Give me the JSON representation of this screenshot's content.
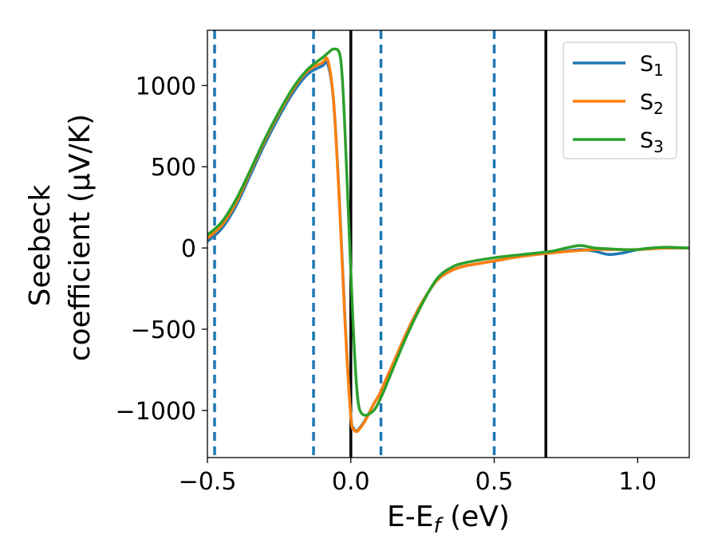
{
  "chart_data": {
    "type": "line",
    "xlabel": "E-E",
    "xlabel_sub": "f",
    "xlabel_unit": " (eV)",
    "ylabel_line1": "Seebeck",
    "ylabel_line2": "coefficient  (μV/K)",
    "xlim": [
      -0.5,
      1.18
    ],
    "ylim": [
      -1290,
      1340
    ],
    "x_ticks": [
      -0.5,
      0.0,
      0.5,
      1.0
    ],
    "x_tick_labels": [
      "−0.5",
      "0.0",
      "0.5",
      "1.0"
    ],
    "y_ticks": [
      1000,
      500,
      0,
      -500,
      -1000
    ],
    "y_tick_labels": [
      "1000",
      "500",
      "0",
      "−500",
      "−1000"
    ],
    "grid": false,
    "legend_position": "top-right",
    "vlines_dashed": [
      -0.475,
      -0.13,
      0.105,
      0.5
    ],
    "vlines_solid": [
      0.0,
      0.68
    ],
    "colors": {
      "S1": "#1f77b4",
      "S2": "#ff7f0e",
      "S3": "#2ca02c",
      "dashed": "#1f77b4",
      "solid": "#000000"
    },
    "series": [
      {
        "name": "S",
        "sub": "1",
        "color": "#1f77b4",
        "x": [
          -0.5,
          -0.45,
          -0.4,
          -0.35,
          -0.3,
          -0.25,
          -0.2,
          -0.15,
          -0.1,
          -0.08,
          -0.06,
          -0.04,
          -0.02,
          0.0,
          0.01,
          0.02,
          0.03,
          0.05,
          0.08,
          0.1,
          0.12,
          0.15,
          0.2,
          0.25,
          0.3,
          0.35,
          0.4,
          0.5,
          0.6,
          0.7,
          0.8,
          0.85,
          0.9,
          0.95,
          1.0,
          1.05,
          1.1,
          1.18
        ],
        "y": [
          40,
          120,
          260,
          450,
          640,
          810,
          960,
          1070,
          1120,
          1130,
          900,
          300,
          -450,
          -1030,
          -1110,
          -1125,
          -1110,
          -1060,
          -960,
          -900,
          -820,
          -700,
          -500,
          -330,
          -200,
          -140,
          -110,
          -80,
          -50,
          -30,
          -10,
          -20,
          -40,
          -30,
          -10,
          0,
          0,
          0
        ]
      },
      {
        "name": "S",
        "sub": "2",
        "color": "#ff7f0e",
        "x": [
          -0.5,
          -0.45,
          -0.4,
          -0.35,
          -0.3,
          -0.25,
          -0.2,
          -0.15,
          -0.1,
          -0.08,
          -0.06,
          -0.04,
          -0.02,
          0.0,
          0.01,
          0.02,
          0.03,
          0.05,
          0.08,
          0.1,
          0.12,
          0.15,
          0.2,
          0.25,
          0.3,
          0.35,
          0.4,
          0.5,
          0.6,
          0.7,
          0.8,
          0.85,
          0.9,
          0.95,
          1.0,
          1.05,
          1.1,
          1.18
        ],
        "y": [
          60,
          140,
          280,
          470,
          660,
          830,
          980,
          1090,
          1140,
          1155,
          900,
          280,
          -470,
          -1040,
          -1115,
          -1130,
          -1115,
          -1065,
          -960,
          -900,
          -820,
          -700,
          -500,
          -330,
          -200,
          -140,
          -110,
          -80,
          -50,
          -30,
          -15,
          -10,
          -10,
          -10,
          -10,
          -5,
          0,
          0
        ]
      },
      {
        "name": "S",
        "sub": "3",
        "color": "#2ca02c",
        "x": [
          -0.5,
          -0.45,
          -0.4,
          -0.35,
          -0.3,
          -0.25,
          -0.2,
          -0.15,
          -0.1,
          -0.08,
          -0.06,
          -0.04,
          -0.03,
          -0.02,
          0.0,
          0.01,
          0.02,
          0.03,
          0.05,
          0.08,
          0.1,
          0.12,
          0.15,
          0.2,
          0.25,
          0.3,
          0.35,
          0.4,
          0.5,
          0.6,
          0.7,
          0.75,
          0.8,
          0.85,
          0.9,
          0.95,
          1.0,
          1.05,
          1.1,
          1.18
        ],
        "y": [
          80,
          160,
          300,
          480,
          670,
          840,
          990,
          1100,
          1170,
          1200,
          1225,
          1200,
          1050,
          700,
          -150,
          -550,
          -850,
          -990,
          -1030,
          -1000,
          -940,
          -860,
          -730,
          -520,
          -340,
          -190,
          -120,
          -90,
          -60,
          -40,
          -20,
          0,
          15,
          0,
          -5,
          -10,
          -10,
          0,
          5,
          0
        ]
      }
    ]
  }
}
